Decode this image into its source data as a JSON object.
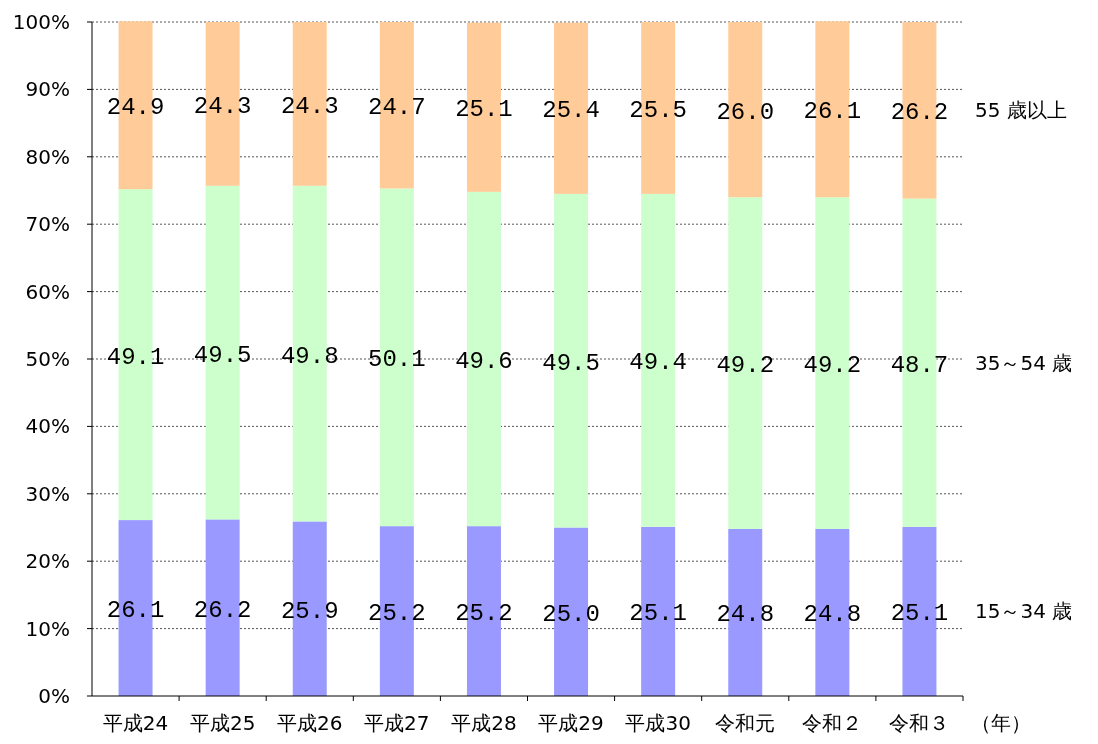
{
  "chart_data": {
    "type": "bar",
    "stacked": true,
    "xlabel": "（年）",
    "categories": [
      "平成24",
      "平成25",
      "平成26",
      "平成27",
      "平成28",
      "平成29",
      "平成30",
      "令和元",
      "令和２",
      "令和３"
    ],
    "series": [
      {
        "name": "15～34 歳",
        "color": "#9999ff",
        "values": [
          26.1,
          26.2,
          25.9,
          25.2,
          25.2,
          25.0,
          25.1,
          24.8,
          24.8,
          25.1
        ],
        "value_labels": [
          "26.1",
          "26.2",
          "25.9",
          "25.2",
          "25.2",
          "25.0",
          "25.1",
          "24.8",
          "24.8",
          "25.1"
        ]
      },
      {
        "name": "35～54 歳",
        "color": "#ccffcc",
        "values": [
          49.1,
          49.5,
          49.8,
          50.1,
          49.6,
          49.5,
          49.4,
          49.2,
          49.2,
          48.7
        ],
        "value_labels": [
          "49.1",
          "49.5",
          "49.8",
          "50.1",
          "49.6",
          "49.5",
          "49.4",
          "49.2",
          "49.2",
          "48.7"
        ]
      },
      {
        "name": "55 歳以上",
        "color": "#ffcc99",
        "values": [
          24.9,
          24.3,
          24.3,
          24.7,
          25.1,
          25.4,
          25.5,
          26.0,
          26.1,
          26.2
        ],
        "value_labels": [
          "24.9",
          "24.3",
          "24.3",
          "24.7",
          "25.1",
          "25.4",
          "25.5",
          "26.0",
          "26.1",
          "26.2"
        ]
      }
    ],
    "ylim": [
      0,
      100
    ],
    "yticks": [
      {
        "value": 0,
        "label": "0%"
      },
      {
        "value": 10,
        "label": "10%"
      },
      {
        "value": 20,
        "label": "20%"
      },
      {
        "value": 30,
        "label": "30%"
      },
      {
        "value": 40,
        "label": "40%"
      },
      {
        "value": 50,
        "label": "50%"
      },
      {
        "value": 60,
        "label": "60%"
      },
      {
        "value": 70,
        "label": "70%"
      },
      {
        "value": 80,
        "label": "80%"
      },
      {
        "value": 90,
        "label": "90%"
      },
      {
        "value": 100,
        "label": "100%"
      }
    ],
    "grid": "y"
  }
}
